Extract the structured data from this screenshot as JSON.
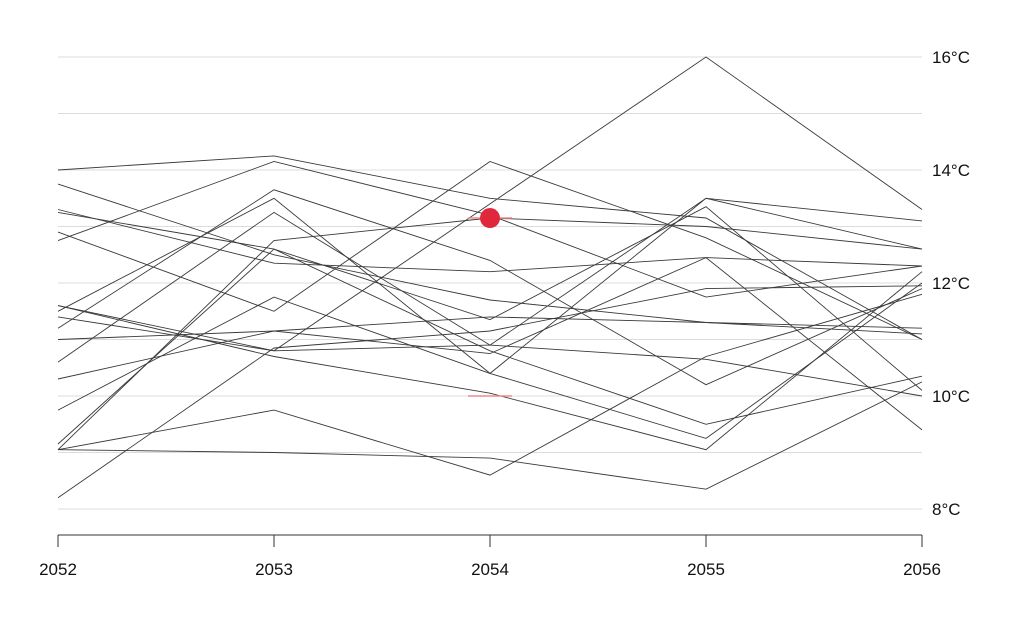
{
  "chart_data": {
    "type": "line",
    "x": [
      2052,
      2053,
      2054,
      2055,
      2056
    ],
    "x_tick_labels": [
      "2052",
      "2053",
      "2054",
      "2055",
      "2056"
    ],
    "y_ticks": [
      8,
      10,
      12,
      14,
      16
    ],
    "y_tick_labels": [
      "8°C",
      "10°C",
      "12°C",
      "14°C",
      "16°C"
    ],
    "ylim": [
      7.5,
      16.5
    ],
    "unit": "°C",
    "grid": "horizontal every 1°C",
    "highlight": {
      "x": 2054,
      "marker_value": 13.15,
      "range_low": 10.0,
      "range_high": 13.15,
      "color": "#e0283c",
      "range_color": "#f08a8a"
    },
    "series": [
      {
        "values": [
          11.6,
          10.8,
          13.4,
          16.0,
          13.3
        ]
      },
      {
        "values": [
          14.0,
          14.25,
          13.5,
          13.15,
          11.0
        ]
      },
      {
        "values": [
          12.75,
          14.15,
          13.2,
          11.75,
          12.3
        ]
      },
      {
        "values": [
          13.3,
          12.35,
          12.2,
          12.45,
          12.3
        ]
      },
      {
        "values": [
          11.2,
          13.65,
          12.4,
          10.2,
          11.9
        ]
      },
      {
        "values": [
          13.75,
          12.5,
          11.7,
          11.3,
          11.1
        ]
      },
      {
        "values": [
          11.5,
          13.5,
          10.4,
          13.5,
          12.6
        ]
      },
      {
        "values": [
          10.6,
          13.25,
          10.9,
          13.5,
          13.1
        ]
      },
      {
        "values": [
          9.15,
          12.6,
          11.35,
          13.35,
          10.1
        ]
      },
      {
        "values": [
          12.9,
          11.5,
          14.15,
          12.8,
          11.0
        ]
      },
      {
        "values": [
          9.05,
          12.75,
          13.15,
          13.0,
          12.6
        ]
      },
      {
        "values": [
          10.3,
          11.15,
          10.75,
          12.45,
          9.4
        ]
      },
      {
        "values": [
          9.75,
          11.75,
          10.4,
          9.25,
          12.0
        ]
      },
      {
        "values": [
          8.2,
          10.85,
          11.15,
          11.9,
          11.95
        ]
      },
      {
        "values": [
          13.25,
          12.6,
          10.8,
          9.5,
          10.35
        ]
      },
      {
        "values": [
          11.6,
          10.7,
          10.05,
          9.05,
          12.2
        ]
      },
      {
        "values": [
          11.0,
          11.15,
          11.4,
          11.3,
          11.2
        ]
      },
      {
        "values": [
          11.4,
          10.8,
          10.9,
          10.65,
          10.0
        ]
      },
      {
        "values": [
          9.05,
          9.75,
          8.6,
          10.7,
          11.8
        ]
      },
      {
        "values": [
          9.05,
          9.0,
          8.9,
          8.35,
          10.25
        ]
      }
    ]
  }
}
